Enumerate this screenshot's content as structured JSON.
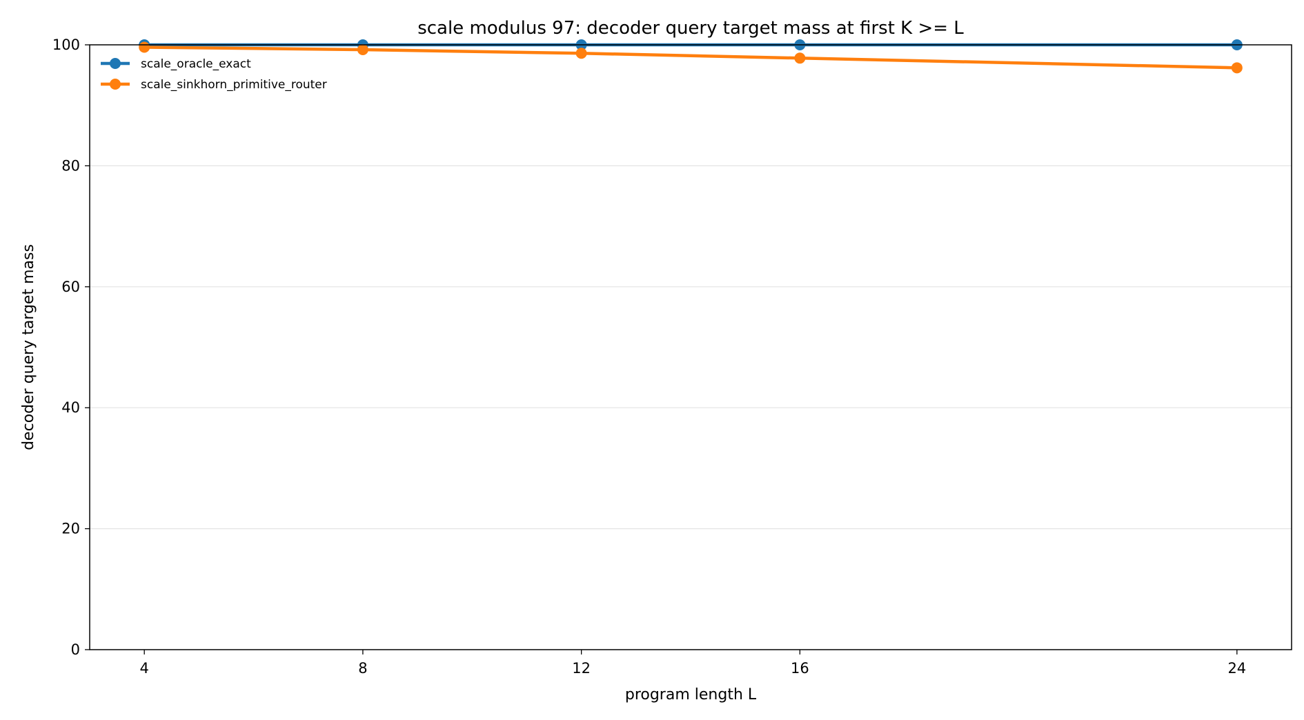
{
  "chart_data": {
    "type": "line",
    "title": "scale modulus 97: decoder query target mass at first K >= L",
    "xlabel": "program length L",
    "ylabel": "decoder query target mass",
    "x": [
      4,
      8,
      12,
      16,
      24
    ],
    "x_ticks": [
      4,
      8,
      12,
      16,
      24
    ],
    "y_ticks": [
      0,
      20,
      40,
      60,
      80,
      100
    ],
    "xlim": [
      3,
      25
    ],
    "ylim": [
      0,
      100
    ],
    "grid": "horizontal",
    "legend_position": "top-left",
    "series": [
      {
        "name": "scale_oracle_exact",
        "color": "#1f77b4",
        "values": [
          100,
          100,
          100,
          100,
          100
        ]
      },
      {
        "name": "scale_sinkhorn_primitive_router",
        "color": "#ff7f0e",
        "values": [
          99.6,
          99.2,
          98.6,
          97.8,
          96.2
        ]
      }
    ]
  }
}
